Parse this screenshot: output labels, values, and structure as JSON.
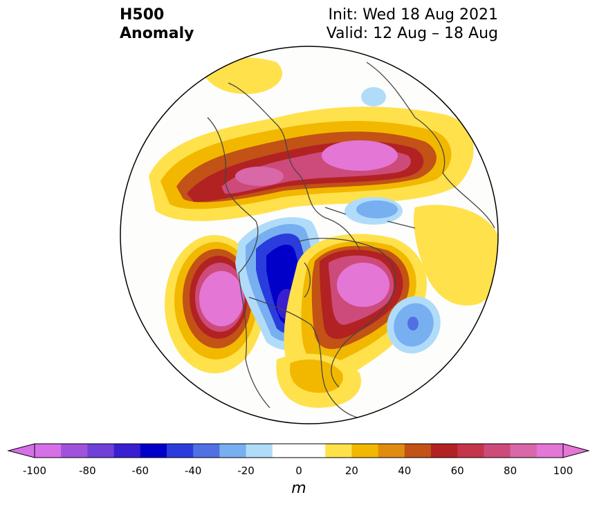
{
  "header": {
    "title_line1": "H500",
    "title_line2": "Anomaly",
    "init": "Init: Wed 18 Aug 2021",
    "valid": "Valid: 12 Aug – 18 Aug"
  },
  "colorbar": {
    "ticks": [
      "-100",
      "-80",
      "-60",
      "-40",
      "-20",
      "0",
      "20",
      "40",
      "60",
      "80",
      "100"
    ],
    "unit": "m",
    "colors": [
      "#d670e8",
      "#a052dc",
      "#7040d8",
      "#3a1fd0",
      "#0000c8",
      "#2a3cdc",
      "#5070e4",
      "#78aff0",
      "#b0dcfa",
      "#ffffff",
      "#ffffff",
      "#ffe14c",
      "#f2b800",
      "#e08c10",
      "#c25216",
      "#b22222",
      "#c4344a",
      "#cd4b7a",
      "#d868a8",
      "#e476d6"
    ]
  },
  "colors": {
    "land_outline": "#444444",
    "positive_peak": "#e476d6",
    "negative_peak": "#0000c8"
  }
}
